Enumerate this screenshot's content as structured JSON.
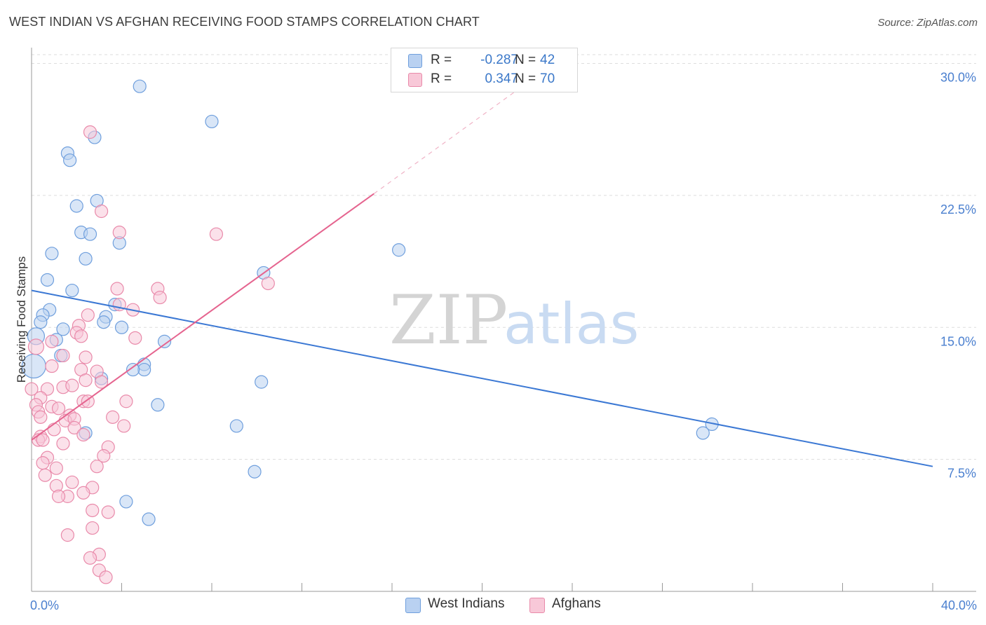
{
  "title": "WEST INDIAN VS AFGHAN RECEIVING FOOD STAMPS CORRELATION CHART",
  "source": "Source: ZipAtlas.com",
  "watermark": {
    "zip": "ZIP",
    "atlas": "atlas"
  },
  "legend": {
    "rows": [
      {
        "r_label": "R =",
        "r_value": "-0.287",
        "n_label": "N =",
        "n_value": "42",
        "fill": "#b9d1f1",
        "stroke": "#6f9fdd"
      },
      {
        "r_label": "R =",
        "r_value": "0.347",
        "n_label": "N =",
        "n_value": "70",
        "fill": "#f8c8d8",
        "stroke": "#e98aaa"
      }
    ]
  },
  "bottom_legend": [
    {
      "label": "West Indians",
      "fill": "#b9d1f1",
      "stroke": "#6f9fdd"
    },
    {
      "label": "Afghans",
      "fill": "#f8c8d8",
      "stroke": "#e98aaa"
    }
  ],
  "chart_data": {
    "type": "scatter",
    "title": "WEST INDIAN VS AFGHAN RECEIVING FOOD STAMPS CORRELATION CHART",
    "xlabel": "",
    "ylabel": "Receiving Food Stamps",
    "xlim": [
      0,
      40
    ],
    "ylim": [
      0,
      30.5
    ],
    "x_tick_labels": [
      {
        "v": 0,
        "label": "0.0%"
      },
      {
        "v": 40,
        "label": "40.0%"
      }
    ],
    "x_minor_ticks": [
      4,
      8,
      12,
      16,
      20,
      24,
      28,
      32,
      36,
      40
    ],
    "y_ticks": [
      {
        "v": 7.5,
        "label": "7.5%"
      },
      {
        "v": 15,
        "label": "15.0%"
      },
      {
        "v": 22.5,
        "label": "22.5%"
      },
      {
        "v": 30,
        "label": "30.0%"
      }
    ],
    "grid": true,
    "colors": {
      "west_indians_line": "#3b78d4",
      "afghans_line": "#e5648f",
      "axis": "#999999",
      "grid": "#dddddd"
    },
    "series": [
      {
        "name": "West Indians",
        "fill": "#b9d1f1",
        "stroke": "#6f9fdd",
        "r": -0.287,
        "n": 42,
        "trend": {
          "x": [
            0,
            40
          ],
          "y": [
            17.1,
            7.1
          ]
        },
        "points": [
          {
            "x": 4.8,
            "y": 28.7
          },
          {
            "x": 8.0,
            "y": 26.7
          },
          {
            "x": 2.8,
            "y": 25.8
          },
          {
            "x": 1.6,
            "y": 24.9
          },
          {
            "x": 1.7,
            "y": 24.5
          },
          {
            "x": 2.9,
            "y": 22.2
          },
          {
            "x": 2.0,
            "y": 21.9
          },
          {
            "x": 2.2,
            "y": 20.4
          },
          {
            "x": 2.6,
            "y": 20.3
          },
          {
            "x": 3.9,
            "y": 19.8
          },
          {
            "x": 0.9,
            "y": 19.2
          },
          {
            "x": 2.4,
            "y": 18.9
          },
          {
            "x": 16.3,
            "y": 19.4
          },
          {
            "x": 10.3,
            "y": 18.1
          },
          {
            "x": 0.7,
            "y": 17.7
          },
          {
            "x": 1.8,
            "y": 17.1
          },
          {
            "x": 3.7,
            "y": 16.3
          },
          {
            "x": 0.8,
            "y": 16.0
          },
          {
            "x": 0.5,
            "y": 15.7
          },
          {
            "x": 3.3,
            "y": 15.6
          },
          {
            "x": 0.4,
            "y": 15.3
          },
          {
            "x": 3.2,
            "y": 15.3
          },
          {
            "x": 1.4,
            "y": 14.9
          },
          {
            "x": 4.0,
            "y": 15.0
          },
          {
            "x": 0.2,
            "y": 14.5
          },
          {
            "x": 1.1,
            "y": 14.3
          },
          {
            "x": 5.9,
            "y": 14.2
          },
          {
            "x": 1.3,
            "y": 13.4
          },
          {
            "x": 5.0,
            "y": 12.9
          },
          {
            "x": 5.0,
            "y": 12.6
          },
          {
            "x": 4.5,
            "y": 12.6
          },
          {
            "x": 0.1,
            "y": 12.8
          },
          {
            "x": 3.1,
            "y": 12.1
          },
          {
            "x": 10.2,
            "y": 11.9
          },
          {
            "x": 5.6,
            "y": 10.6
          },
          {
            "x": 9.1,
            "y": 9.4
          },
          {
            "x": 2.4,
            "y": 9.0
          },
          {
            "x": 30.2,
            "y": 9.5
          },
          {
            "x": 29.8,
            "y": 9.0
          },
          {
            "x": 9.9,
            "y": 6.8
          },
          {
            "x": 4.2,
            "y": 5.1
          },
          {
            "x": 5.2,
            "y": 4.1
          }
        ]
      },
      {
        "name": "Afghans",
        "fill": "#f8c8d8",
        "stroke": "#e98aaa",
        "r": 0.347,
        "n": 70,
        "trend": {
          "x": [
            0,
            15.2
          ],
          "y": [
            8.6,
            22.6
          ]
        },
        "trend_dashed": {
          "x": [
            15.2,
            22.0
          ],
          "y": [
            22.6,
            28.9
          ]
        },
        "points": [
          {
            "x": 2.6,
            "y": 26.1
          },
          {
            "x": 3.1,
            "y": 21.6
          },
          {
            "x": 3.9,
            "y": 20.4
          },
          {
            "x": 8.2,
            "y": 20.3
          },
          {
            "x": 10.5,
            "y": 17.5
          },
          {
            "x": 3.8,
            "y": 17.2
          },
          {
            "x": 5.6,
            "y": 17.2
          },
          {
            "x": 5.7,
            "y": 16.7
          },
          {
            "x": 3.9,
            "y": 16.3
          },
          {
            "x": 4.5,
            "y": 16.0
          },
          {
            "x": 2.5,
            "y": 15.7
          },
          {
            "x": 2.1,
            "y": 15.1
          },
          {
            "x": 2.0,
            "y": 14.7
          },
          {
            "x": 2.2,
            "y": 14.5
          },
          {
            "x": 4.6,
            "y": 14.4
          },
          {
            "x": 0.9,
            "y": 14.2
          },
          {
            "x": 0.2,
            "y": 13.9
          },
          {
            "x": 1.4,
            "y": 13.4
          },
          {
            "x": 2.4,
            "y": 13.3
          },
          {
            "x": 0.9,
            "y": 12.8
          },
          {
            "x": 2.2,
            "y": 12.6
          },
          {
            "x": 2.9,
            "y": 12.5
          },
          {
            "x": 2.4,
            "y": 12.0
          },
          {
            "x": 3.1,
            "y": 11.9
          },
          {
            "x": 1.4,
            "y": 11.6
          },
          {
            "x": 1.8,
            "y": 11.7
          },
          {
            "x": 0.0,
            "y": 11.5
          },
          {
            "x": 0.7,
            "y": 11.5
          },
          {
            "x": 0.4,
            "y": 11.0
          },
          {
            "x": 2.3,
            "y": 10.8
          },
          {
            "x": 4.2,
            "y": 10.8
          },
          {
            "x": 0.2,
            "y": 10.6
          },
          {
            "x": 0.9,
            "y": 10.5
          },
          {
            "x": 1.2,
            "y": 10.4
          },
          {
            "x": 0.3,
            "y": 10.2
          },
          {
            "x": 1.7,
            "y": 10.0
          },
          {
            "x": 0.4,
            "y": 9.9
          },
          {
            "x": 1.5,
            "y": 9.7
          },
          {
            "x": 3.6,
            "y": 9.9
          },
          {
            "x": 1.9,
            "y": 9.8
          },
          {
            "x": 1.9,
            "y": 9.3
          },
          {
            "x": 1.0,
            "y": 9.2
          },
          {
            "x": 4.1,
            "y": 9.4
          },
          {
            "x": 2.3,
            "y": 8.9
          },
          {
            "x": 0.4,
            "y": 8.8
          },
          {
            "x": 0.3,
            "y": 8.6
          },
          {
            "x": 0.5,
            "y": 8.6
          },
          {
            "x": 1.4,
            "y": 8.4
          },
          {
            "x": 3.4,
            "y": 8.2
          },
          {
            "x": 0.7,
            "y": 7.6
          },
          {
            "x": 3.2,
            "y": 7.7
          },
          {
            "x": 0.5,
            "y": 7.3
          },
          {
            "x": 2.9,
            "y": 7.1
          },
          {
            "x": 1.1,
            "y": 7.0
          },
          {
            "x": 0.6,
            "y": 6.6
          },
          {
            "x": 1.8,
            "y": 6.2
          },
          {
            "x": 1.1,
            "y": 6.0
          },
          {
            "x": 2.7,
            "y": 5.9
          },
          {
            "x": 2.3,
            "y": 5.6
          },
          {
            "x": 1.6,
            "y": 5.4
          },
          {
            "x": 1.2,
            "y": 5.4
          },
          {
            "x": 2.7,
            "y": 4.6
          },
          {
            "x": 3.4,
            "y": 4.5
          },
          {
            "x": 2.7,
            "y": 3.6
          },
          {
            "x": 1.6,
            "y": 3.2
          },
          {
            "x": 3.0,
            "y": 2.1
          },
          {
            "x": 2.6,
            "y": 1.9
          },
          {
            "x": 3.0,
            "y": 1.2
          },
          {
            "x": 3.3,
            "y": 0.8
          },
          {
            "x": 2.5,
            "y": 10.8
          }
        ]
      }
    ]
  }
}
